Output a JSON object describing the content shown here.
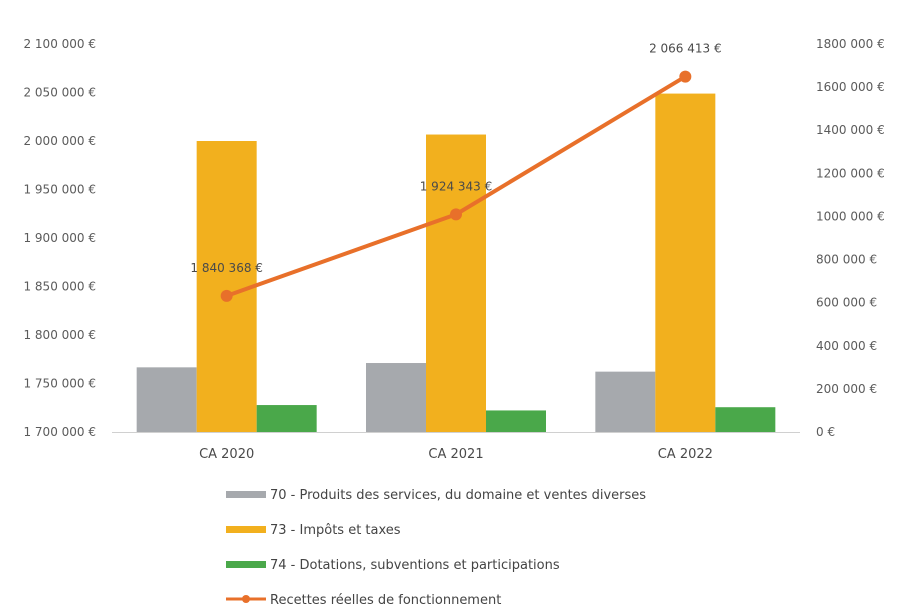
{
  "chart_data": {
    "type": "bar",
    "categories": [
      "CA 2020",
      "CA 2021",
      "CA 2022"
    ],
    "series": [
      {
        "name": "70 - Produits des services, du domaine et ventes diverses",
        "kind": "bar",
        "axis": "right",
        "color": "#a6a9ad",
        "values": [
          300000,
          320000,
          280000
        ]
      },
      {
        "name": "73 - Impôts et taxes",
        "kind": "bar",
        "axis": "right",
        "color": "#f2b01e",
        "values": [
          1350000,
          1380000,
          1570000
        ]
      },
      {
        "name": "74 - Dotations, subventions et participations",
        "kind": "bar",
        "axis": "right",
        "color": "#4aa84a",
        "values": [
          125000,
          100000,
          115000
        ]
      },
      {
        "name": "Recettes réelles de fonctionnement",
        "kind": "line",
        "axis": "left",
        "color": "#e8702a",
        "values": [
          1840368,
          1924343,
          2066413
        ],
        "labels": [
          "1 840 368 €",
          "1 924 343 €",
          "2 066 413 €"
        ]
      }
    ],
    "y_left": {
      "min": 1700000,
      "max": 2100000,
      "ticks": [
        1700000,
        1750000,
        1800000,
        1850000,
        1900000,
        1950000,
        2000000,
        2050000,
        2100000
      ],
      "tick_labels": [
        "1 700 000 €",
        "1 750 000 €",
        "1 800 000 €",
        "1 850 000 €",
        "1 900 000 €",
        "1 950 000 €",
        "2 000 000 €",
        "2 050 000 €",
        "2 100 000 €"
      ]
    },
    "y_right": {
      "min": 0,
      "max": 1800000,
      "ticks": [
        0,
        200000,
        400000,
        600000,
        800000,
        1000000,
        1200000,
        1400000,
        1600000,
        1800000
      ],
      "tick_labels": [
        "0 €",
        "200 000 €",
        "400 000 €",
        "600 000 €",
        "800 000 €",
        "1000 000 €",
        "1200 000 €",
        "1400 000 €",
        "1600 000 €",
        "1800 000 €"
      ]
    },
    "title": "",
    "xlabel": "",
    "ylabel": "",
    "grid": false,
    "legend_position": "bottom"
  }
}
